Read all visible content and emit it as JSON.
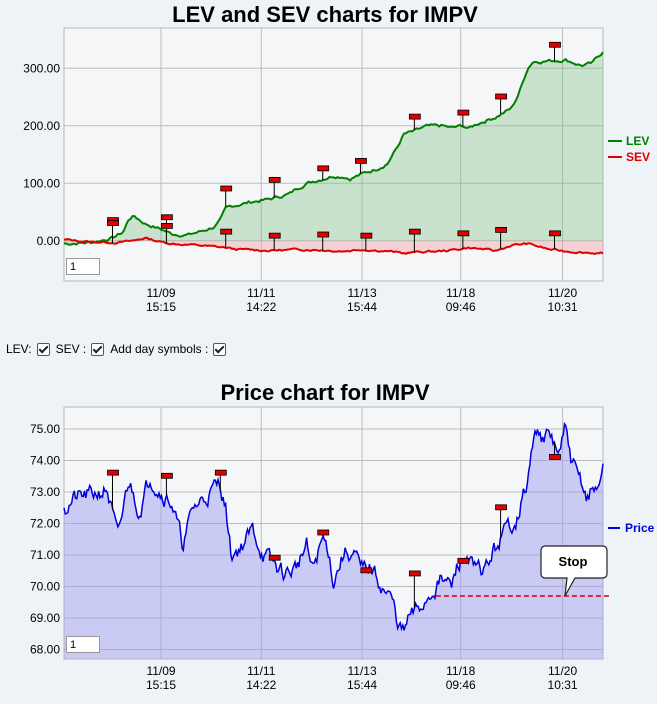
{
  "chart_data": [
    {
      "type": "line",
      "title": "LEV and SEV charts for IMPV",
      "x_tick_labels": [
        [
          "11/09",
          "15:15"
        ],
        [
          "11/11",
          "14:22"
        ],
        [
          "11/13",
          "15:44"
        ],
        [
          "11/18",
          "09:46"
        ],
        [
          "11/20",
          "10:31"
        ]
      ],
      "y_ticks": [
        "300.00",
        "200.00",
        "100.00",
        "0.00"
      ],
      "ylim": [
        -70,
        370
      ],
      "grid": true,
      "legend_placement": "right",
      "series": [
        {
          "name": "LEV",
          "color": "#008000",
          "keypoints": [
            [
              0,
              -5
            ],
            [
              0.05,
              -3
            ],
            [
              0.09,
              5
            ],
            [
              0.11,
              15
            ],
            [
              0.12,
              38
            ],
            [
              0.13,
              43
            ],
            [
              0.15,
              30
            ],
            [
              0.18,
              20
            ],
            [
              0.2,
              12
            ],
            [
              0.23,
              10
            ],
            [
              0.26,
              18
            ],
            [
              0.28,
              25
            ],
            [
              0.29,
              35
            ],
            [
              0.3,
              55
            ],
            [
              0.31,
              60
            ],
            [
              0.35,
              68
            ],
            [
              0.38,
              72
            ],
            [
              0.4,
              77
            ],
            [
              0.42,
              82
            ],
            [
              0.43,
              90
            ],
            [
              0.45,
              100
            ],
            [
              0.48,
              108
            ],
            [
              0.5,
              113
            ],
            [
              0.52,
              112
            ],
            [
              0.53,
              108
            ],
            [
              0.55,
              115
            ],
            [
              0.58,
              125
            ],
            [
              0.6,
              135
            ],
            [
              0.61,
              150
            ],
            [
              0.62,
              165
            ],
            [
              0.63,
              185
            ],
            [
              0.65,
              190
            ],
            [
              0.67,
              198
            ],
            [
              0.7,
              200
            ],
            [
              0.72,
              196
            ],
            [
              0.74,
              200
            ],
            [
              0.75,
              195
            ],
            [
              0.77,
              205
            ],
            [
              0.8,
              215
            ],
            [
              0.82,
              225
            ],
            [
              0.83,
              230
            ],
            [
              0.84,
              248
            ],
            [
              0.85,
              272
            ],
            [
              0.86,
              300
            ],
            [
              0.87,
              312
            ],
            [
              0.9,
              313
            ],
            [
              0.93,
              315
            ],
            [
              0.96,
              305
            ],
            [
              0.98,
              308
            ],
            [
              0.99,
              320
            ],
            [
              1,
              328
            ]
          ]
        },
        {
          "name": "SEV",
          "color": "#e00000",
          "keypoints": [
            [
              0,
              2
            ],
            [
              0.05,
              -2
            ],
            [
              0.1,
              -3
            ],
            [
              0.13,
              0
            ],
            [
              0.15,
              5
            ],
            [
              0.18,
              -2
            ],
            [
              0.2,
              -5
            ],
            [
              0.25,
              -8
            ],
            [
              0.3,
              -12
            ],
            [
              0.32,
              -15
            ],
            [
              0.38,
              -17
            ],
            [
              0.45,
              -15
            ],
            [
              0.52,
              -18
            ],
            [
              0.55,
              -15
            ],
            [
              0.6,
              -18
            ],
            [
              0.63,
              -22
            ],
            [
              0.65,
              -20
            ],
            [
              0.7,
              -18
            ],
            [
              0.73,
              -15
            ],
            [
              0.75,
              -12
            ],
            [
              0.78,
              -15
            ],
            [
              0.8,
              -18
            ],
            [
              0.83,
              -8
            ],
            [
              0.86,
              -5
            ],
            [
              0.88,
              -10
            ],
            [
              0.9,
              -15
            ],
            [
              0.93,
              -18
            ],
            [
              0.96,
              -20
            ],
            [
              1,
              -22
            ]
          ]
        }
      ],
      "day_symbols_lev": [
        [
          0.09,
          35
        ],
        [
          0.19,
          40
        ],
        [
          0.3,
          90
        ],
        [
          0.39,
          105
        ],
        [
          0.48,
          125
        ],
        [
          0.55,
          138
        ],
        [
          0.65,
          215
        ],
        [
          0.74,
          222
        ],
        [
          0.81,
          250
        ],
        [
          0.91,
          340
        ]
      ],
      "day_symbols_sev": [
        [
          0.09,
          30
        ],
        [
          0.19,
          25
        ],
        [
          0.3,
          15
        ],
        [
          0.39,
          8
        ],
        [
          0.48,
          10
        ],
        [
          0.56,
          8
        ],
        [
          0.65,
          15
        ],
        [
          0.74,
          12
        ],
        [
          0.81,
          18
        ],
        [
          0.91,
          12
        ]
      ]
    },
    {
      "type": "line",
      "title": "Price chart for IMPV",
      "x_tick_labels": [
        [
          "11/09",
          "15:15"
        ],
        [
          "11/11",
          "14:22"
        ],
        [
          "11/13",
          "15:44"
        ],
        [
          "11/18",
          "09:46"
        ],
        [
          "11/20",
          "10:31"
        ]
      ],
      "y_ticks": [
        "75.00",
        "74.00",
        "73.00",
        "72.00",
        "71.00",
        "70.00",
        "69.00",
        "68.00"
      ],
      "ylim": [
        67.7,
        75.7
      ],
      "grid": true,
      "legend_placement": "right",
      "series": [
        {
          "name": "Price",
          "color": "#0000dd",
          "keypoints": [
            [
              0,
              72.5
            ],
            [
              0.02,
              72.8
            ],
            [
              0.05,
              72.9
            ],
            [
              0.08,
              73.1
            ],
            [
              0.1,
              71.5
            ],
            [
              0.12,
              73.4
            ],
            [
              0.14,
              72.4
            ],
            [
              0.16,
              73.5
            ],
            [
              0.18,
              73.0
            ],
            [
              0.2,
              72.7
            ],
            [
              0.22,
              71.3
            ],
            [
              0.24,
              72.5
            ],
            [
              0.26,
              72.8
            ],
            [
              0.29,
              73.3
            ],
            [
              0.3,
              72.5
            ],
            [
              0.31,
              71.0
            ],
            [
              0.33,
              71.3
            ],
            [
              0.35,
              71.8
            ],
            [
              0.37,
              71.0
            ],
            [
              0.39,
              70.7
            ],
            [
              0.41,
              70.4
            ],
            [
              0.43,
              70.6
            ],
            [
              0.45,
              71.3
            ],
            [
              0.46,
              70.5
            ],
            [
              0.48,
              71.5
            ],
            [
              0.49,
              71.2
            ],
            [
              0.5,
              70.2
            ],
            [
              0.52,
              71.1
            ],
            [
              0.54,
              71.0
            ],
            [
              0.55,
              70.5
            ],
            [
              0.57,
              70.6
            ],
            [
              0.59,
              70.0
            ],
            [
              0.61,
              69.5
            ],
            [
              0.62,
              68.8
            ],
            [
              0.63,
              68.5
            ],
            [
              0.64,
              69.0
            ],
            [
              0.66,
              69.3
            ],
            [
              0.68,
              69.8
            ],
            [
              0.7,
              70.2
            ],
            [
              0.72,
              70.0
            ],
            [
              0.73,
              70.7
            ],
            [
              0.75,
              71.0
            ],
            [
              0.76,
              70.5
            ],
            [
              0.78,
              70.5
            ],
            [
              0.8,
              71.2
            ],
            [
              0.82,
              71.8
            ],
            [
              0.84,
              72.2
            ],
            [
              0.86,
              73.3
            ],
            [
              0.87,
              74.5
            ],
            [
              0.88,
              75.1
            ],
            [
              0.89,
              74.6
            ],
            [
              0.9,
              74.8
            ],
            [
              0.92,
              74.2
            ],
            [
              0.93,
              75.0
            ],
            [
              0.94,
              74.1
            ],
            [
              0.95,
              73.6
            ],
            [
              0.96,
              73.3
            ],
            [
              0.97,
              72.8
            ],
            [
              0.98,
              73.1
            ],
            [
              0.99,
              73.0
            ],
            [
              1,
              73.9
            ]
          ]
        }
      ],
      "day_symbols": [
        [
          0.09,
          73.6
        ],
        [
          0.19,
          73.5
        ],
        [
          0.29,
          73.6
        ],
        [
          0.39,
          70.9
        ],
        [
          0.48,
          71.7
        ],
        [
          0.56,
          70.5
        ],
        [
          0.65,
          70.4
        ],
        [
          0.74,
          70.8
        ],
        [
          0.81,
          72.5
        ],
        [
          0.91,
          74.1
        ]
      ],
      "stop_level": 69.7,
      "stop_label": "Stop"
    }
  ],
  "controls": {
    "lev_label": "LEV:",
    "sev_label": "SEV :",
    "day_symbols_label": "Add day symbols :"
  },
  "zoom_value_1": "1",
  "zoom_value_2": "1"
}
